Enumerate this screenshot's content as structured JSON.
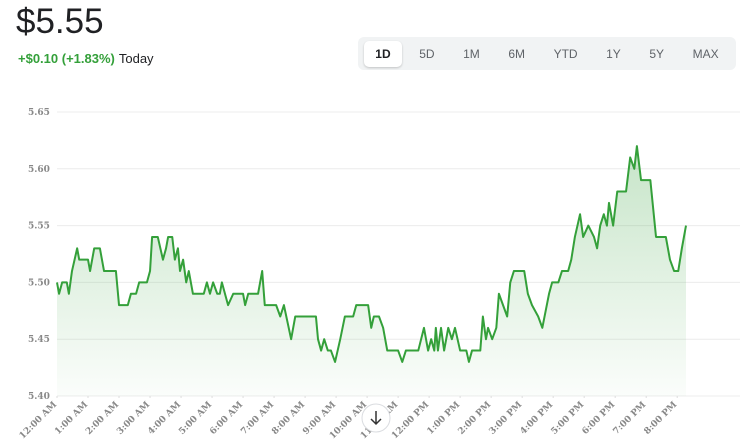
{
  "header": {
    "price": "$5.55",
    "change": "+$0.10 (+1.83%)",
    "period": "Today"
  },
  "ranges": [
    "1D",
    "5D",
    "1M",
    "6M",
    "YTD",
    "1Y",
    "5Y",
    "MAX"
  ],
  "selected_range": "1D",
  "chart_data": {
    "type": "line",
    "color": "#34a03a",
    "area": true,
    "grid": true,
    "xlim": [
      0,
      1217
    ],
    "ylim": [
      5.4,
      5.65
    ],
    "yticks": [
      {
        "value": 5.4,
        "label": "5.40"
      },
      5.45,
      {
        "value": 5.5,
        "label": "5.50"
      },
      5.55,
      {
        "value": 5.6,
        "label": "5.60"
      },
      5.65
    ],
    "xticks": [
      {
        "value": 0,
        "label": "12:00 AM"
      },
      {
        "value": 60,
        "label": "1:00 AM"
      },
      {
        "value": 120,
        "label": "2:00 AM"
      },
      {
        "value": 180,
        "label": "3:00 AM"
      },
      {
        "value": 240,
        "label": "4:00 AM"
      },
      {
        "value": 300,
        "label": "5:00 AM"
      },
      {
        "value": 360,
        "label": "6:00 AM"
      },
      {
        "value": 420,
        "label": "7:00 AM"
      },
      {
        "value": 480,
        "label": "8:00 AM"
      },
      {
        "value": 540,
        "label": "9:00 AM"
      },
      {
        "value": 600,
        "label": "10:00 AM"
      },
      {
        "value": 660,
        "label": "11:00 AM"
      },
      {
        "value": 720,
        "label": "12:00 PM"
      },
      {
        "value": 780,
        "label": "1:00 PM"
      },
      {
        "value": 840,
        "label": "2:00 PM"
      },
      {
        "value": 900,
        "label": "3:00 PM"
      },
      {
        "value": 960,
        "label": "4:00 PM"
      },
      {
        "value": 1020,
        "label": "5:00 PM"
      },
      {
        "value": 1080,
        "label": "6:00 PM"
      },
      {
        "value": 1140,
        "label": "7:00 PM"
      },
      {
        "value": 1200,
        "label": "8:00 PM"
      }
    ],
    "x": [
      0,
      4,
      10,
      19,
      23,
      29,
      39,
      43,
      60,
      64,
      72,
      83,
      91,
      114,
      120,
      137,
      143,
      153,
      159,
      174,
      180,
      184,
      195,
      205,
      211,
      215,
      223,
      228,
      234,
      238,
      244,
      250,
      255,
      263,
      284,
      290,
      296,
      302,
      310,
      315,
      319,
      331,
      341,
      360,
      364,
      370,
      389,
      397,
      402,
      424,
      432,
      439,
      453,
      461,
      501,
      505,
      511,
      517,
      524,
      530,
      538,
      548,
      557,
      573,
      579,
      602,
      608,
      613,
      623,
      631,
      639,
      660,
      668,
      675,
      699,
      710,
      718,
      724,
      730,
      733,
      737,
      743,
      749,
      757,
      764,
      770,
      780,
      792,
      797,
      803,
      819,
      824,
      830,
      834,
      842,
      850,
      855,
      863,
      871,
      877,
      884,
      904,
      911,
      919,
      931,
      939,
      952,
      958,
      970,
      977,
      989,
      995,
      1002,
      1012,
      1018,
      1028,
      1039,
      1045,
      1051,
      1058,
      1064,
      1068,
      1076,
      1084,
      1101,
      1109,
      1117,
      1122,
      1130,
      1148,
      1159,
      1178,
      1186,
      1194,
      1202,
      1209,
      1217
    ],
    "values": [
      5.5,
      5.49,
      5.5,
      5.5,
      5.49,
      5.51,
      5.53,
      5.52,
      5.52,
      5.51,
      5.53,
      5.53,
      5.51,
      5.51,
      5.48,
      5.48,
      5.49,
      5.49,
      5.5,
      5.5,
      5.51,
      5.54,
      5.54,
      5.52,
      5.53,
      5.54,
      5.54,
      5.52,
      5.53,
      5.51,
      5.52,
      5.5,
      5.51,
      5.49,
      5.49,
      5.5,
      5.49,
      5.5,
      5.49,
      5.49,
      5.5,
      5.48,
      5.49,
      5.49,
      5.48,
      5.49,
      5.49,
      5.51,
      5.48,
      5.48,
      5.47,
      5.48,
      5.45,
      5.47,
      5.47,
      5.45,
      5.44,
      5.45,
      5.44,
      5.44,
      5.43,
      5.45,
      5.47,
      5.47,
      5.48,
      5.48,
      5.46,
      5.47,
      5.47,
      5.46,
      5.44,
      5.44,
      5.43,
      5.44,
      5.44,
      5.46,
      5.44,
      5.45,
      5.44,
      5.46,
      5.44,
      5.46,
      5.44,
      5.46,
      5.45,
      5.46,
      5.44,
      5.44,
      5.43,
      5.44,
      5.44,
      5.47,
      5.45,
      5.46,
      5.45,
      5.46,
      5.49,
      5.48,
      5.47,
      5.5,
      5.51,
      5.51,
      5.49,
      5.48,
      5.47,
      5.46,
      5.49,
      5.5,
      5.5,
      5.51,
      5.51,
      5.52,
      5.54,
      5.56,
      5.54,
      5.55,
      5.54,
      5.53,
      5.55,
      5.56,
      5.55,
      5.57,
      5.55,
      5.58,
      5.58,
      5.61,
      5.6,
      5.62,
      5.59,
      5.59,
      5.54,
      5.54,
      5.52,
      5.51,
      5.51,
      5.53,
      5.55
    ]
  }
}
